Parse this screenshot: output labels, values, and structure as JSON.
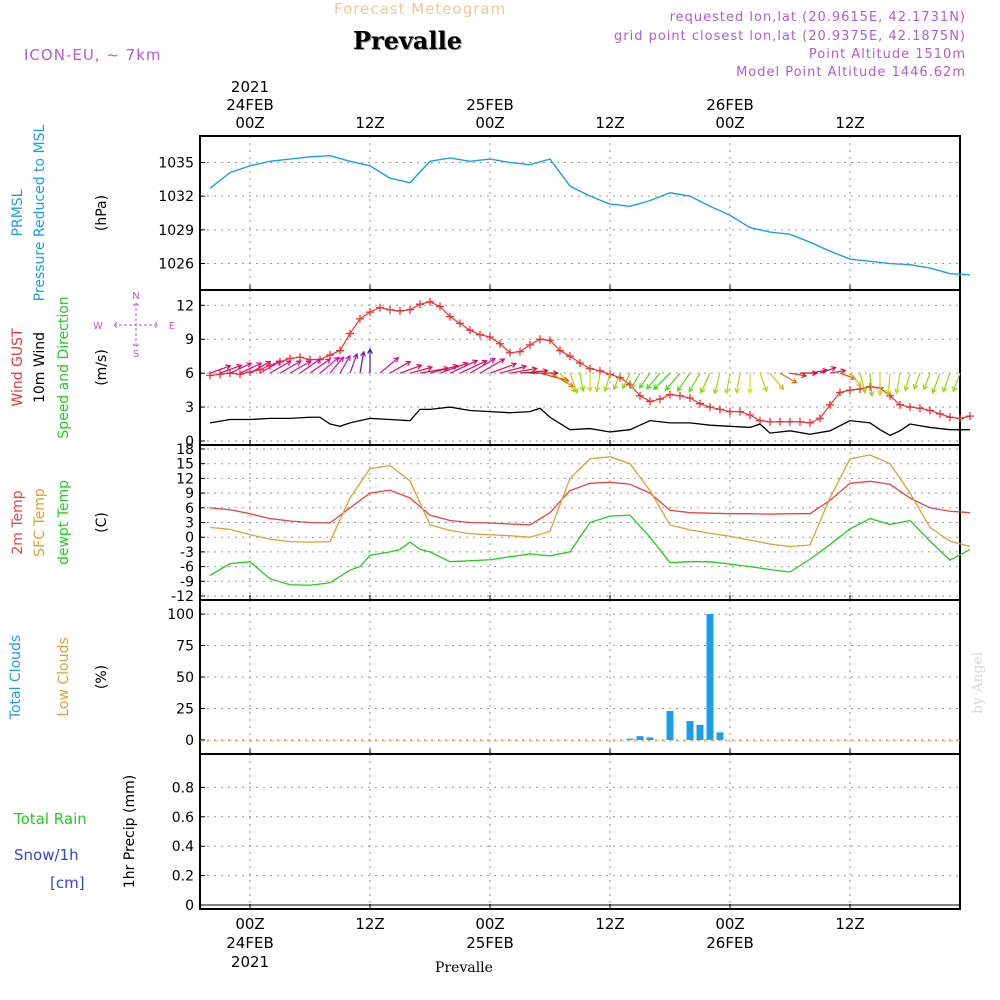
{
  "header": {
    "title": "Forecast Meteogram",
    "location": "Prevalle",
    "model": "ICON-EU, ~ 7km",
    "requested": "requested lon,lat (20.9615E, 42.1731N)",
    "gridpoint": "grid point closest lon,lat (20.9375E, 42.1875N)",
    "point_alt": "Point Altitude 1510m",
    "model_alt": "Model Point Altitude 1446.62m"
  },
  "credit": "by Angel",
  "bottom_label": "Prevalle",
  "time_axis": {
    "year": "2021",
    "day_labels": [
      "24FEB",
      "25FEB",
      "26FEB"
    ],
    "tick_labels": [
      "00Z",
      "12Z",
      "00Z",
      "12Z",
      "00Z",
      "12Z"
    ]
  },
  "colors": {
    "pressure": "#1aa0ea",
    "gust": "#ee3333",
    "wind": "#000000",
    "t2m": "#e54545",
    "sfc": "#e0a030",
    "dewpt": "#22cc22",
    "clouds_total": "#1aa0ea",
    "clouds_low": "#e0a030",
    "rain": "#22cc22",
    "snow": "#3344dd",
    "purple": "#b45ad6"
  },
  "panels": [
    {
      "id": "pressure",
      "labels": [
        {
          "text": "PRMSL",
          "color": "#1aa0ea"
        },
        {
          "text": "Pressure Reduced to MSL",
          "color": "#1aa0ea"
        }
      ],
      "unit": "(hPa)"
    },
    {
      "id": "wind",
      "labels": [
        {
          "text": "Wind GUST",
          "color": "#ee3333"
        },
        {
          "text": "10m Wind",
          "color": "#000000"
        },
        {
          "text": "Speed and Direction",
          "color": "#22cc22"
        }
      ],
      "unit": "(m/s)"
    },
    {
      "id": "temp",
      "labels": [
        {
          "text": "2m Temp",
          "color": "#e54545"
        },
        {
          "text": "SFC Temp",
          "color": "#e0a030"
        },
        {
          "text": "dewpt Temp",
          "color": "#22cc22"
        }
      ],
      "unit": "(C)"
    },
    {
      "id": "clouds",
      "labels": [
        {
          "text": "Total Clouds",
          "color": "#1aa0ea"
        },
        {
          "text": "Low Clouds",
          "color": "#e0a030"
        }
      ],
      "unit": "(%)"
    },
    {
      "id": "precip",
      "labels": [],
      "unit": "1hr Precip (mm)"
    }
  ],
  "compass": {
    "n": "N",
    "s": "S",
    "e": "E",
    "w": "W"
  },
  "precip_legend": {
    "rain": "Total  Rain",
    "snow": "Snow/1h",
    "unit": "[cm]"
  },
  "chart_data": [
    {
      "type": "line",
      "id": "pressure",
      "ylim": [
        1024,
        1037
      ],
      "yticks": [
        1026,
        1029,
        1032,
        1035
      ],
      "ylabel": "(hPa)",
      "series": [
        {
          "name": "PRMSL",
          "color": "#1aa0ea",
          "x": [
            -4,
            -2,
            0,
            2,
            4,
            6,
            8,
            10,
            12,
            14,
            16,
            18,
            20,
            22,
            24,
            26,
            28,
            30,
            32,
            34,
            36,
            38,
            40,
            42,
            44,
            46,
            48,
            50,
            52,
            54,
            56,
            58,
            60,
            62,
            64,
            66,
            68,
            70,
            72
          ],
          "values": [
            1032.7,
            1034.1,
            1034.7,
            1035.1,
            1035.3,
            1035.5,
            1035.6,
            1035.1,
            1034.7,
            1033.6,
            1033.2,
            1035.1,
            1035.4,
            1035.1,
            1035.3,
            1035.0,
            1034.8,
            1035.3,
            1032.9,
            1032.0,
            1031.3,
            1031.1,
            1031.6,
            1032.3,
            1032.0,
            1031.1,
            1030.3,
            1029.2,
            1028.8,
            1028.6,
            1027.9,
            1027.1,
            1026.4,
            1026.2,
            1026.0,
            1025.9,
            1025.6,
            1025.1,
            1025.0
          ]
        }
      ]
    },
    {
      "type": "line",
      "id": "wind",
      "ylim": [
        0,
        13
      ],
      "yticks": [
        0,
        3,
        6,
        9,
        12
      ],
      "ylabel": "(m/s)",
      "series": [
        {
          "name": "Wind GUST",
          "color": "#ee3333",
          "marker": "+",
          "x": [
            -4,
            -3,
            -2,
            -1,
            0,
            1,
            2,
            3,
            4,
            5,
            6,
            7,
            8,
            9,
            10,
            11,
            12,
            13,
            14,
            15,
            16,
            17,
            18,
            19,
            20,
            21,
            22,
            23,
            24,
            25,
            26,
            27,
            28,
            29,
            30,
            31,
            32,
            33,
            34,
            35,
            36,
            37,
            38,
            39,
            40,
            41,
            42,
            43,
            44,
            45,
            46,
            47,
            48,
            49,
            50,
            51,
            52,
            53,
            54,
            55,
            56,
            57,
            58,
            59,
            60,
            61,
            62,
            63,
            64,
            65,
            66,
            67,
            68,
            69,
            70,
            71,
            72
          ],
          "values": [
            5.8,
            5.9,
            6.0,
            5.9,
            6.1,
            6.3,
            6.7,
            7.0,
            7.3,
            7.4,
            7.2,
            7.2,
            7.6,
            8.0,
            9.5,
            10.8,
            11.4,
            11.8,
            11.6,
            11.5,
            11.6,
            12.1,
            12.3,
            11.9,
            11.0,
            10.4,
            9.8,
            9.4,
            9.2,
            8.6,
            7.8,
            7.9,
            8.5,
            9.0,
            8.9,
            8.0,
            7.5,
            6.9,
            6.4,
            6.2,
            5.9,
            5.6,
            5.0,
            4.0,
            3.5,
            3.7,
            4.1,
            4.0,
            3.8,
            3.3,
            3.0,
            2.8,
            2.6,
            2.6,
            2.3,
            1.8,
            1.7,
            1.7,
            1.7,
            1.7,
            1.6,
            2.0,
            3.2,
            4.3,
            4.5,
            4.6,
            4.8,
            4.7,
            4.0,
            3.2,
            3.0,
            2.9,
            2.7,
            2.4,
            2.1,
            2.0,
            2.2
          ]
        },
        {
          "name": "10m Wind",
          "color": "#000000",
          "x": [
            -4,
            -2,
            0,
            2,
            4,
            6,
            7,
            8,
            9,
            10,
            12,
            14,
            16,
            17,
            18,
            20,
            22,
            24,
            26,
            28,
            29,
            30,
            32,
            34,
            36,
            38,
            40,
            42,
            44,
            46,
            48,
            50,
            51,
            52,
            54,
            56,
            58,
            60,
            62,
            63,
            64,
            65,
            66,
            68,
            70,
            72
          ],
          "values": [
            1.6,
            1.9,
            1.9,
            2.0,
            2.0,
            2.1,
            2.1,
            1.5,
            1.3,
            1.6,
            2.0,
            1.9,
            1.8,
            2.8,
            2.8,
            3.0,
            2.7,
            2.6,
            2.5,
            2.6,
            2.9,
            2.1,
            1.0,
            1.1,
            0.8,
            1.0,
            1.8,
            1.6,
            1.6,
            1.4,
            1.3,
            1.2,
            1.5,
            0.7,
            0.9,
            0.6,
            0.9,
            1.8,
            1.6,
            1.0,
            0.5,
            0.9,
            1.5,
            1.2,
            1.0,
            1.0
          ]
        },
        {
          "name": "Speed and Direction",
          "type": "arrows",
          "x": [
            -4,
            -3,
            -2,
            -1,
            0,
            1,
            2,
            3,
            4,
            5,
            6,
            7,
            8,
            9,
            10,
            11,
            12,
            13,
            14,
            15,
            16,
            17,
            18,
            19,
            20,
            21,
            22,
            23,
            24,
            25,
            26,
            27,
            28,
            29,
            30,
            31,
            32,
            33,
            34,
            35,
            36,
            37,
            38,
            39,
            40,
            41,
            42,
            43,
            44,
            45,
            46,
            47,
            48,
            49,
            50,
            51,
            52,
            53,
            54,
            55,
            56,
            57,
            58,
            59,
            60,
            61,
            62,
            63,
            64,
            65,
            66,
            67,
            68,
            69,
            70,
            71,
            72
          ],
          "dir_deg": [
            250,
            250,
            245,
            245,
            240,
            240,
            240,
            240,
            240,
            235,
            235,
            230,
            220,
            210,
            200,
            190,
            180,
            230,
            240,
            250,
            255,
            260,
            255,
            250,
            245,
            245,
            240,
            240,
            250,
            255,
            260,
            265,
            270,
            285,
            300,
            320,
            340,
            350,
            0,
            10,
            15,
            20,
            25,
            30,
            35,
            40,
            45,
            40,
            35,
            30,
            25,
            15,
            10,
            10,
            0,
            340,
            320,
            300,
            280,
            270,
            260,
            250,
            260,
            290,
            320,
            345,
            355,
            0,
            5,
            10,
            15,
            20,
            20,
            20,
            20,
            20,
            20
          ],
          "speed": [
            1.6,
            1.8,
            1.9,
            1.9,
            1.9,
            2.0,
            2.0,
            2.0,
            2.0,
            2.1,
            2.1,
            2.1,
            1.5,
            1.3,
            1.4,
            1.6,
            2.0,
            2.0,
            1.9,
            1.8,
            1.8,
            2.8,
            2.8,
            2.9,
            3.0,
            2.9,
            2.8,
            2.7,
            2.6,
            2.5,
            2.5,
            2.6,
            2.6,
            2.9,
            2.5,
            2.1,
            1.5,
            1.0,
            1.0,
            1.1,
            1.1,
            0.9,
            0.8,
            0.9,
            1.0,
            1.4,
            1.8,
            1.7,
            1.6,
            1.6,
            1.6,
            1.5,
            1.4,
            1.3,
            1.3,
            1.2,
            1.5,
            1.2,
            0.7,
            0.8,
            0.9,
            0.8,
            0.6,
            0.7,
            0.9,
            1.4,
            1.8,
            1.7,
            1.6,
            1.4,
            1.0,
            0.8,
            0.9,
            1.5,
            1.3,
            1.2,
            1.0
          ]
        }
      ]
    },
    {
      "type": "line",
      "id": "temp",
      "ylim": [
        -12,
        18
      ],
      "yticks": [
        -12,
        -9,
        -6,
        -3,
        0,
        3,
        6,
        9,
        12,
        15,
        18
      ],
      "ylabel": "(C)",
      "series": [
        {
          "name": "2m Temp",
          "color": "#e54545",
          "x": [
            -4,
            -2,
            0,
            2,
            4,
            6,
            8,
            10,
            12,
            14,
            16,
            18,
            20,
            22,
            24,
            26,
            28,
            30,
            32,
            34,
            36,
            38,
            40,
            42,
            44,
            46,
            48,
            50,
            52,
            54,
            56,
            58,
            60,
            62,
            64,
            66,
            68,
            70,
            72
          ],
          "values": [
            6.0,
            5.6,
            4.8,
            3.8,
            3.3,
            3.0,
            2.9,
            6.0,
            9.0,
            9.6,
            8.0,
            4.5,
            3.4,
            3.0,
            2.9,
            2.7,
            2.5,
            5.0,
            9.5,
            11.0,
            11.2,
            10.8,
            9.0,
            5.5,
            5.0,
            4.9,
            4.8,
            4.8,
            4.7,
            4.8,
            4.8,
            7.5,
            11.0,
            11.4,
            10.8,
            8.0,
            6.0,
            5.3,
            5.0
          ]
        },
        {
          "name": "SFC Temp",
          "color": "#e0a030",
          "x": [
            -4,
            -2,
            0,
            2,
            4,
            6,
            8,
            10,
            12,
            14,
            16,
            18,
            20,
            22,
            24,
            26,
            28,
            30,
            32,
            34,
            36,
            38,
            40,
            42,
            44,
            46,
            48,
            50,
            52,
            54,
            56,
            58,
            60,
            62,
            64,
            66,
            68,
            70,
            72
          ],
          "values": [
            2.0,
            1.6,
            0.5,
            -0.4,
            -0.9,
            -1.0,
            -0.9,
            8.0,
            14.0,
            14.6,
            11.5,
            2.5,
            1.4,
            0.7,
            0.5,
            0.3,
            0.0,
            1.2,
            12.0,
            16.0,
            16.4,
            15.0,
            9.5,
            2.5,
            1.5,
            0.8,
            0.2,
            -0.6,
            -1.4,
            -1.9,
            -1.6,
            8.0,
            16.0,
            16.8,
            15.0,
            9.0,
            2.0,
            -0.8,
            -1.9
          ]
        },
        {
          "name": "dewpt Temp",
          "color": "#22cc22",
          "x": [
            -4,
            -2,
            0,
            2,
            4,
            6,
            8,
            10,
            11,
            12,
            14,
            15,
            16,
            17,
            18,
            20,
            22,
            24,
            26,
            28,
            29,
            30,
            32,
            34,
            36,
            38,
            40,
            42,
            44,
            46,
            48,
            50,
            52,
            54,
            56,
            58,
            60,
            62,
            63,
            64,
            65,
            66,
            68,
            70,
            72
          ],
          "values": [
            -7.8,
            -5.4,
            -5.0,
            -8.5,
            -9.7,
            -9.8,
            -9.3,
            -6.7,
            -6.0,
            -3.7,
            -3.0,
            -2.5,
            -1.0,
            -2.5,
            -3.0,
            -5.0,
            -4.8,
            -4.6,
            -4.0,
            -3.4,
            -3.6,
            -3.8,
            -3.0,
            3.0,
            4.3,
            4.5,
            0.0,
            -5.2,
            -5.0,
            -5.0,
            -5.5,
            -6.0,
            -6.6,
            -7.1,
            -4.5,
            -1.5,
            1.7,
            3.8,
            3.2,
            2.6,
            3.0,
            3.4,
            -0.8,
            -4.7,
            -2.5
          ]
        }
      ]
    },
    {
      "type": "bar",
      "id": "clouds",
      "ylim": [
        -8,
        108
      ],
      "yticks": [
        0,
        25,
        50,
        75,
        100
      ],
      "ylabel": "(%)",
      "series": [
        {
          "name": "Total Clouds",
          "color": "#1aa0ea",
          "x": [
            38,
            39,
            40,
            41,
            42,
            43,
            44,
            45,
            46,
            47
          ],
          "values": [
            1,
            3,
            2,
            0,
            23,
            0,
            15,
            12,
            100,
            6
          ]
        },
        {
          "name": "Low Clouds",
          "color": "#e0a030",
          "x": [],
          "values": []
        }
      ]
    },
    {
      "type": "bar",
      "id": "precip",
      "ylim": [
        0,
        1.0
      ],
      "yticks": [
        0,
        0.2,
        0.4,
        0.6,
        0.8
      ],
      "ylabel": "1hr Precip (mm)",
      "series": [
        {
          "name": "Total Rain",
          "color": "#22cc22",
          "x": [],
          "values": []
        },
        {
          "name": "Snow/1h",
          "color": "#3344dd",
          "x": [],
          "values": []
        }
      ]
    }
  ]
}
